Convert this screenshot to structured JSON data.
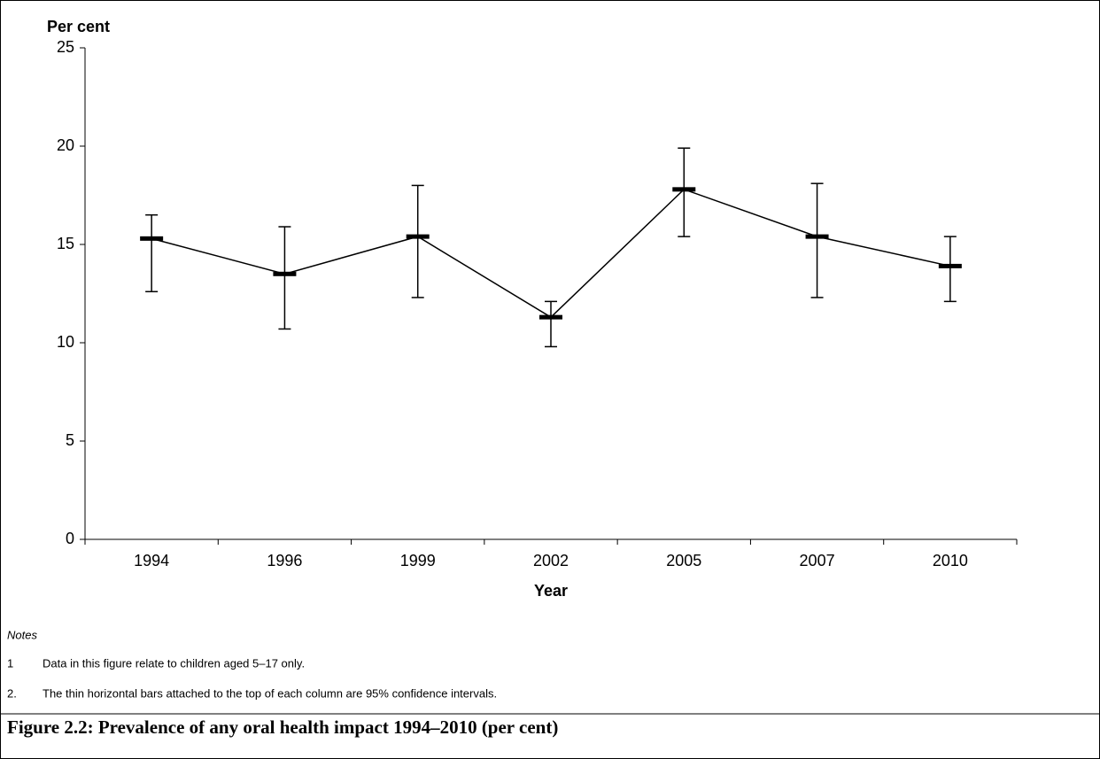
{
  "chart_data": {
    "type": "line",
    "title": "Figure 2.2: Prevalence of any oral health impact 1994–2010 (per cent)",
    "y_label": "Per cent",
    "x_label": "Year",
    "categories": [
      "1994",
      "1996",
      "1999",
      "2002",
      "2005",
      "2007",
      "2010"
    ],
    "values": [
      15.3,
      13.5,
      15.4,
      11.3,
      17.8,
      15.4,
      13.9
    ],
    "ci_lower": [
      12.6,
      10.7,
      12.3,
      9.8,
      15.4,
      12.3,
      12.1
    ],
    "ci_upper": [
      16.5,
      15.9,
      18.0,
      12.1,
      19.9,
      18.1,
      15.4
    ],
    "color": "#000000",
    "ylim": [
      0,
      25
    ],
    "yticks": [
      0,
      5,
      10,
      15,
      20,
      25
    ],
    "grid": false,
    "notes": {
      "heading": "Notes",
      "items": [
        {
          "number": "1",
          "text": "Data in this figure relate to children aged 5–17 only."
        },
        {
          "number": "2.",
          "text": "The thin horizontal bars attached to the top of each column are 95% confidence intervals."
        }
      ]
    }
  }
}
